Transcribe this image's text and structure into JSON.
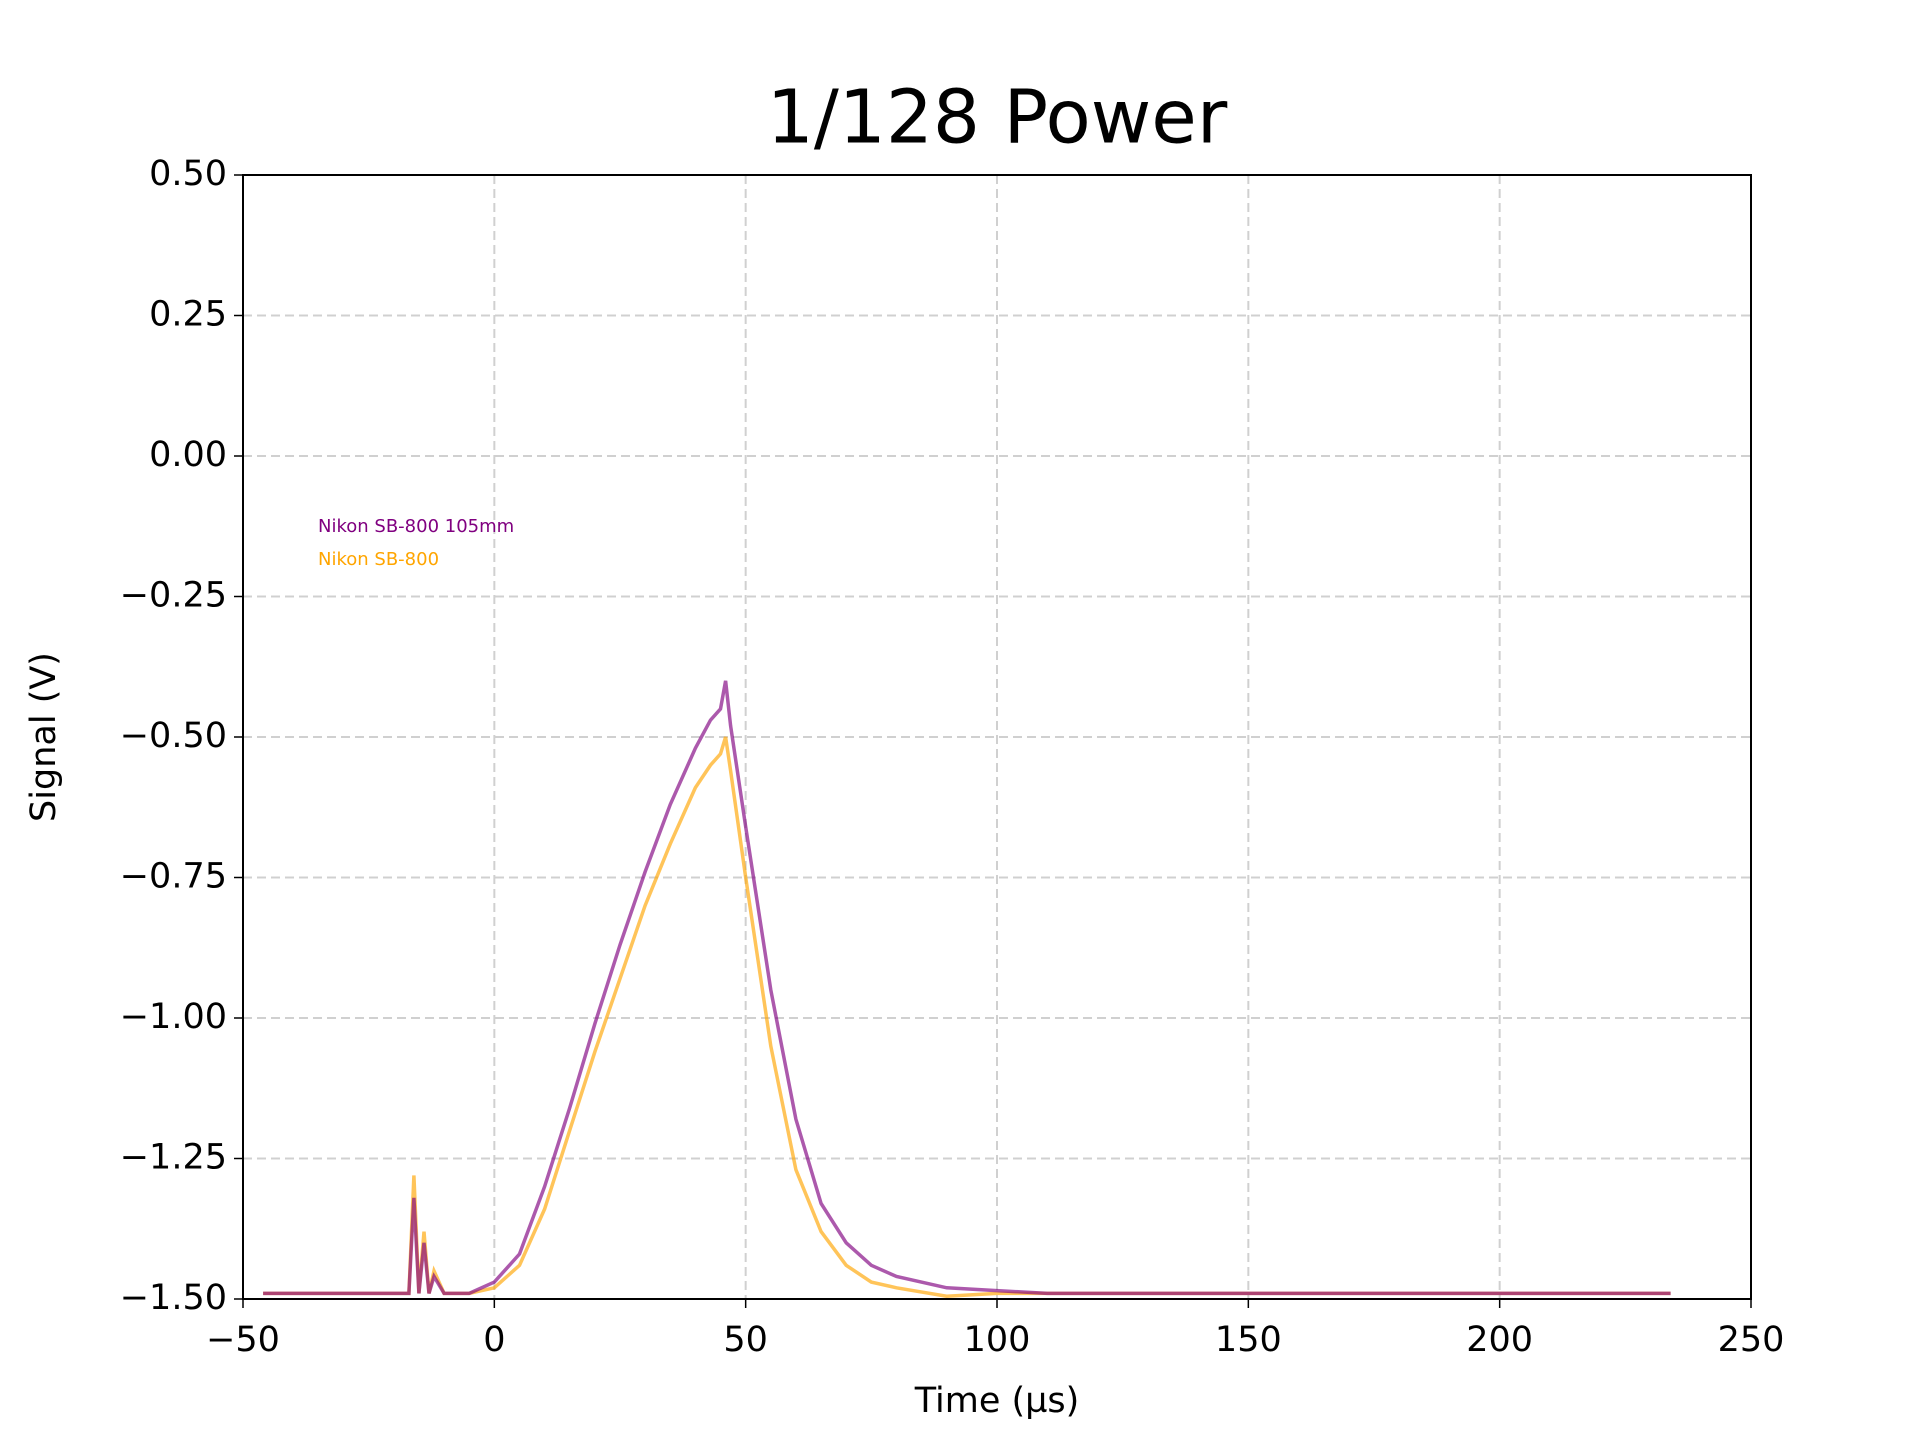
{
  "chart_data": {
    "type": "line",
    "title": "1/128 Power",
    "x_label": "Time (µs)",
    "y_label": "Signal (V)",
    "x": [
      -46,
      -20,
      -17,
      -16,
      -15,
      -14,
      -13,
      -12,
      -10,
      -5,
      0,
      5,
      10,
      15,
      20,
      25,
      30,
      35,
      40,
      43,
      45,
      46,
      47,
      50,
      55,
      60,
      65,
      70,
      75,
      80,
      90,
      100,
      110,
      150,
      200,
      234
    ],
    "series": [
      {
        "name": "Nikon SB-800 105mm",
        "color": "#800080",
        "values": [
          -1.49,
          -1.49,
          -1.49,
          -1.32,
          -1.49,
          -1.4,
          -1.49,
          -1.46,
          -1.49,
          -1.49,
          -1.47,
          -1.42,
          -1.3,
          -1.16,
          -1.01,
          -0.87,
          -0.74,
          -0.62,
          -0.52,
          -0.47,
          -0.45,
          -0.4,
          -0.48,
          -0.66,
          -0.95,
          -1.18,
          -1.33,
          -1.4,
          -1.44,
          -1.46,
          -1.48,
          -1.485,
          -1.49,
          -1.49,
          -1.49,
          -1.49
        ]
      },
      {
        "name": "Nikon SB-800",
        "color": "#ffa500",
        "values": [
          -1.49,
          -1.49,
          -1.49,
          -1.28,
          -1.49,
          -1.38,
          -1.49,
          -1.45,
          -1.49,
          -1.49,
          -1.48,
          -1.44,
          -1.34,
          -1.2,
          -1.06,
          -0.93,
          -0.8,
          -0.69,
          -0.59,
          -0.55,
          -0.53,
          -0.5,
          -0.56,
          -0.75,
          -1.05,
          -1.27,
          -1.38,
          -1.44,
          -1.47,
          -1.48,
          -1.495,
          -1.49,
          -1.49,
          -1.49,
          -1.49,
          -1.49
        ]
      }
    ],
    "xlim": [
      -50,
      250
    ],
    "xticks": [
      {
        "value": -50,
        "label": "−50"
      },
      0,
      50,
      100,
      150,
      200,
      250
    ],
    "ylim": [
      -1.5,
      0.5
    ],
    "yticks": [
      {
        "value": -1.5,
        "label": "−1.50"
      },
      {
        "value": -1.25,
        "label": "−1.25"
      },
      {
        "value": -1,
        "label": "−1.00"
      },
      {
        "value": -0.75,
        "label": "−0.75"
      },
      {
        "value": -0.5,
        "label": "−0.50"
      },
      {
        "value": -0.25,
        "label": "−0.25"
      },
      {
        "value": 0,
        "label": "0.00"
      },
      {
        "value": 0.25,
        "label": "0.25"
      },
      {
        "value": 0.5,
        "label": "0.50"
      }
    ],
    "grid": true,
    "legend": "upper left"
  }
}
